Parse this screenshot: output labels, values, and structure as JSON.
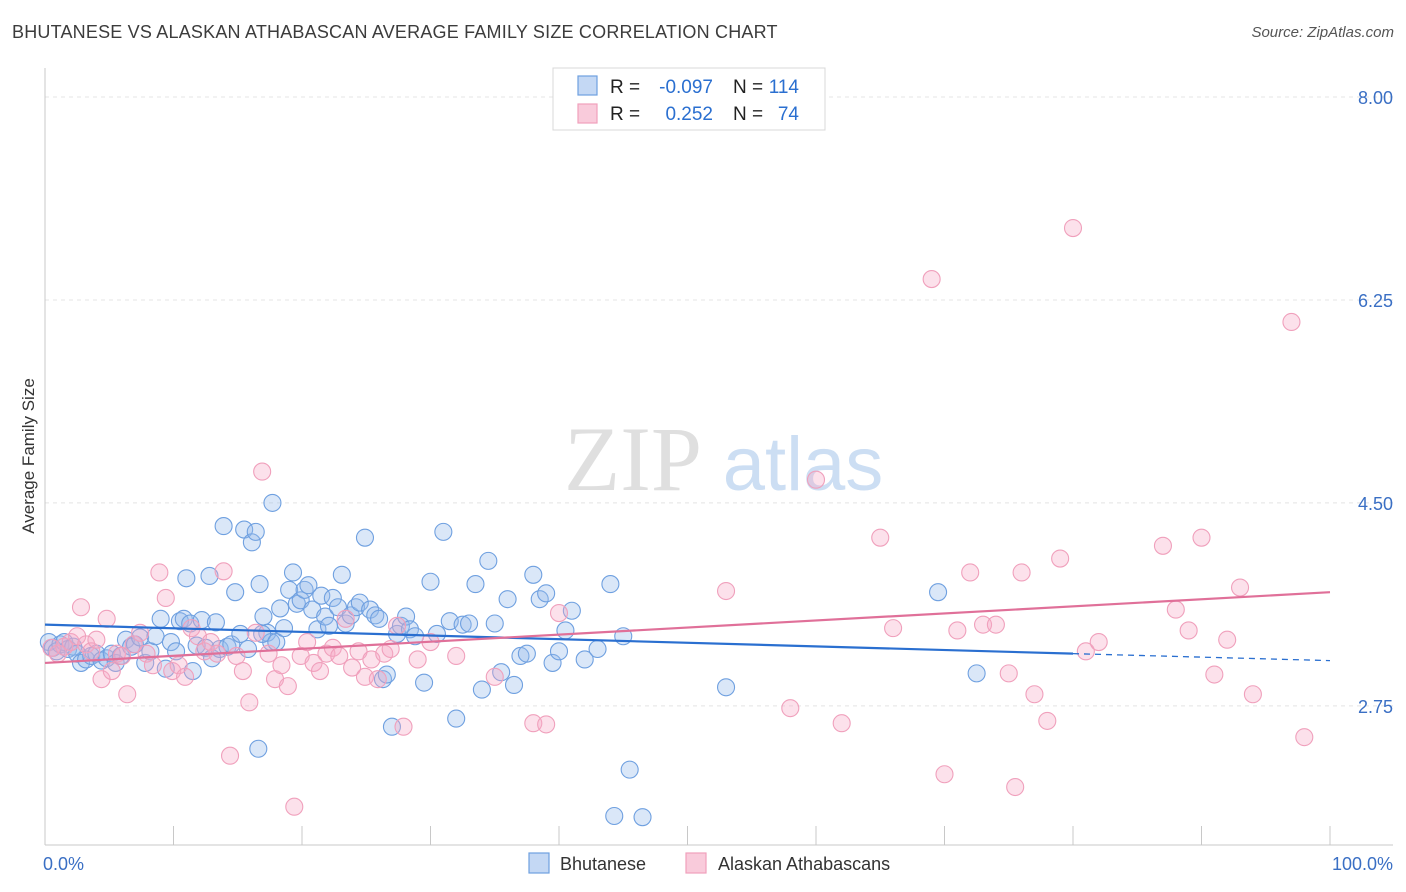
{
  "header": {
    "title": "BHUTANESE VS ALASKAN ATHABASCAN AVERAGE FAMILY SIZE CORRELATION CHART",
    "source": "Source: ZipAtlas.com"
  },
  "watermark": {
    "zip": "ZIP",
    "atlas": "atlas"
  },
  "legend": {
    "rows": [
      {
        "r_label": "R =",
        "r_value": "-0.097",
        "n_label": "N =",
        "n_value": "114"
      },
      {
        "r_label": "R =",
        "r_value": "0.252",
        "n_label": "N =",
        "n_value": "74"
      }
    ]
  },
  "chart_data": {
    "type": "scatter",
    "title": "BHUTANESE VS ALASKAN ATHABASCAN AVERAGE FAMILY SIZE CORRELATION CHART",
    "xlabel": "",
    "ylabel": "Average Family Size",
    "xlim": [
      0,
      100
    ],
    "ylim": [
      1.55,
      8.25
    ],
    "x_tick_labels": [
      "0.0%",
      "100.0%"
    ],
    "y_ticks": [
      2.75,
      4.5,
      6.25,
      8.0
    ],
    "y_tick_labels": [
      "2.75",
      "4.50",
      "6.25",
      "8.00"
    ],
    "grid": true,
    "legend_position": "top-center",
    "colors": {
      "blue": "#6fa0e0",
      "blue_line": "#2a6fd0",
      "pink": "#f0a0bc",
      "pink_line": "#e07099"
    },
    "series": [
      {
        "name": "Bhutanese",
        "color": "#6fa0e0",
        "trend": {
          "x0": 0,
          "y0": 3.45,
          "x1": 80,
          "y1": 3.2,
          "x_dash_end": 100,
          "y_dash_end": 3.14
        },
        "points": [
          [
            0.3,
            3.3
          ],
          [
            0.6,
            3.25
          ],
          [
            0.9,
            3.22
          ],
          [
            1.2,
            3.28
          ],
          [
            1.5,
            3.3
          ],
          [
            1.8,
            3.24
          ],
          [
            2.2,
            3.26
          ],
          [
            2.5,
            3.2
          ],
          [
            2.8,
            3.12
          ],
          [
            3.2,
            3.15
          ],
          [
            3.6,
            3.18
          ],
          [
            4.0,
            3.2
          ],
          [
            4.4,
            3.14
          ],
          [
            4.8,
            3.16
          ],
          [
            5.2,
            3.2
          ],
          [
            5.5,
            3.12
          ],
          [
            5.9,
            3.18
          ],
          [
            6.3,
            3.32
          ],
          [
            6.7,
            3.26
          ],
          [
            7.0,
            3.28
          ],
          [
            7.4,
            3.34
          ],
          [
            7.8,
            3.12
          ],
          [
            8.2,
            3.22
          ],
          [
            8.6,
            3.35
          ],
          [
            9.0,
            3.5
          ],
          [
            9.4,
            3.07
          ],
          [
            9.8,
            3.3
          ],
          [
            10.2,
            3.22
          ],
          [
            10.5,
            3.48
          ],
          [
            10.8,
            3.5
          ],
          [
            11.0,
            3.85
          ],
          [
            11.3,
            3.46
          ],
          [
            11.5,
            3.05
          ],
          [
            11.8,
            3.27
          ],
          [
            12.2,
            3.49
          ],
          [
            12.5,
            3.25
          ],
          [
            12.8,
            3.87
          ],
          [
            13.0,
            3.16
          ],
          [
            13.3,
            3.47
          ],
          [
            13.6,
            3.24
          ],
          [
            13.9,
            4.3
          ],
          [
            14.2,
            3.26
          ],
          [
            14.5,
            3.28
          ],
          [
            14.8,
            3.73
          ],
          [
            15.2,
            3.37
          ],
          [
            15.5,
            4.27
          ],
          [
            15.8,
            3.24
          ],
          [
            16.1,
            4.16
          ],
          [
            16.4,
            4.25
          ],
          [
            16.7,
            3.8
          ],
          [
            17.0,
            3.52
          ],
          [
            17.3,
            3.38
          ],
          [
            17.6,
            3.3
          ],
          [
            16.6,
            2.38
          ],
          [
            16.9,
            3.37
          ],
          [
            17.7,
            4.5
          ],
          [
            18.0,
            3.3
          ],
          [
            18.3,
            3.59
          ],
          [
            18.6,
            3.42
          ],
          [
            19.0,
            3.75
          ],
          [
            19.3,
            3.9
          ],
          [
            19.6,
            3.63
          ],
          [
            19.9,
            3.66
          ],
          [
            20.2,
            3.75
          ],
          [
            20.5,
            3.79
          ],
          [
            20.8,
            3.58
          ],
          [
            21.2,
            3.41
          ],
          [
            21.5,
            3.7
          ],
          [
            21.8,
            3.52
          ],
          [
            22.1,
            3.44
          ],
          [
            22.4,
            3.68
          ],
          [
            22.8,
            3.6
          ],
          [
            23.1,
            3.88
          ],
          [
            23.4,
            3.46
          ],
          [
            23.8,
            3.53
          ],
          [
            24.2,
            3.6
          ],
          [
            24.5,
            3.64
          ],
          [
            24.9,
            4.2
          ],
          [
            25.3,
            3.58
          ],
          [
            25.7,
            3.53
          ],
          [
            26.0,
            3.5
          ],
          [
            26.3,
            2.98
          ],
          [
            26.6,
            3.02
          ],
          [
            27.0,
            2.57
          ],
          [
            27.4,
            3.37
          ],
          [
            27.7,
            3.44
          ],
          [
            28.1,
            3.52
          ],
          [
            28.4,
            3.41
          ],
          [
            28.8,
            3.35
          ],
          [
            29.5,
            2.95
          ],
          [
            30.0,
            3.82
          ],
          [
            30.5,
            3.37
          ],
          [
            31.0,
            4.25
          ],
          [
            31.5,
            3.48
          ],
          [
            32.0,
            2.64
          ],
          [
            32.5,
            3.45
          ],
          [
            33.0,
            3.46
          ],
          [
            33.5,
            3.8
          ],
          [
            34.0,
            2.89
          ],
          [
            34.5,
            4.0
          ],
          [
            35.0,
            3.46
          ],
          [
            35.5,
            3.04
          ],
          [
            36.0,
            3.67
          ],
          [
            36.5,
            2.93
          ],
          [
            37.0,
            3.18
          ],
          [
            37.5,
            3.2
          ],
          [
            38.0,
            3.88
          ],
          [
            38.5,
            3.67
          ],
          [
            39.0,
            3.72
          ],
          [
            39.5,
            3.12
          ],
          [
            40.0,
            3.22
          ],
          [
            40.5,
            3.4
          ],
          [
            41.0,
            3.57
          ],
          [
            42.0,
            3.15
          ],
          [
            43.0,
            3.24
          ],
          [
            44.0,
            3.8
          ],
          [
            45.0,
            3.35
          ],
          [
            44.3,
            1.8
          ],
          [
            45.5,
            2.2
          ],
          [
            46.5,
            1.79
          ],
          [
            53.0,
            2.91
          ],
          [
            69.5,
            3.73
          ],
          [
            72.5,
            3.03
          ]
        ]
      },
      {
        "name": "Alaskan Athabascans",
        "color": "#f0a0bc",
        "trend": {
          "x0": 0,
          "y0": 3.12,
          "x1": 100,
          "y1": 3.73
        },
        "points": [
          [
            0.5,
            3.25
          ],
          [
            1.0,
            3.2
          ],
          [
            1.5,
            3.26
          ],
          [
            2.0,
            3.3
          ],
          [
            2.5,
            3.35
          ],
          [
            2.8,
            3.6
          ],
          [
            3.2,
            3.28
          ],
          [
            3.6,
            3.22
          ],
          [
            4.0,
            3.32
          ],
          [
            4.4,
            2.98
          ],
          [
            4.8,
            3.5
          ],
          [
            5.2,
            3.05
          ],
          [
            5.6,
            3.2
          ],
          [
            6.0,
            3.18
          ],
          [
            6.4,
            2.85
          ],
          [
            6.9,
            3.28
          ],
          [
            7.4,
            3.38
          ],
          [
            7.9,
            3.2
          ],
          [
            8.4,
            3.1
          ],
          [
            8.9,
            3.9
          ],
          [
            9.4,
            3.68
          ],
          [
            9.9,
            3.05
          ],
          [
            10.4,
            3.1
          ],
          [
            10.9,
            3.0
          ],
          [
            11.4,
            3.42
          ],
          [
            11.9,
            3.35
          ],
          [
            12.4,
            3.22
          ],
          [
            12.9,
            3.3
          ],
          [
            13.4,
            3.2
          ],
          [
            13.9,
            3.91
          ],
          [
            14.4,
            2.32
          ],
          [
            14.9,
            3.18
          ],
          [
            15.4,
            3.05
          ],
          [
            15.9,
            2.78
          ],
          [
            16.4,
            3.38
          ],
          [
            16.9,
            4.77
          ],
          [
            17.4,
            3.2
          ],
          [
            17.9,
            2.98
          ],
          [
            18.4,
            3.1
          ],
          [
            18.9,
            2.92
          ],
          [
            19.4,
            1.88
          ],
          [
            19.9,
            3.18
          ],
          [
            20.4,
            3.3
          ],
          [
            20.9,
            3.12
          ],
          [
            21.4,
            3.05
          ],
          [
            21.9,
            3.2
          ],
          [
            22.4,
            3.25
          ],
          [
            22.9,
            3.18
          ],
          [
            23.4,
            3.5
          ],
          [
            23.9,
            3.08
          ],
          [
            24.4,
            3.22
          ],
          [
            24.9,
            3.0
          ],
          [
            25.4,
            3.15
          ],
          [
            25.9,
            2.98
          ],
          [
            26.4,
            3.2
          ],
          [
            26.9,
            3.24
          ],
          [
            27.4,
            3.44
          ],
          [
            27.9,
            2.57
          ],
          [
            29.0,
            3.15
          ],
          [
            30.0,
            3.3
          ],
          [
            32.0,
            3.18
          ],
          [
            35.0,
            3.0
          ],
          [
            38.0,
            2.6
          ],
          [
            39.0,
            2.59
          ],
          [
            40.0,
            3.55
          ],
          [
            53.0,
            3.74
          ],
          [
            58.0,
            2.73
          ],
          [
            60.0,
            4.7
          ],
          [
            62.0,
            2.6
          ],
          [
            65.0,
            4.2
          ],
          [
            66.0,
            3.42
          ],
          [
            69.0,
            6.43
          ],
          [
            70.0,
            2.16
          ],
          [
            71.0,
            3.4
          ],
          [
            72.0,
            3.9
          ],
          [
            73.0,
            3.45
          ],
          [
            74.0,
            3.45
          ],
          [
            75.0,
            3.03
          ],
          [
            75.5,
            2.05
          ],
          [
            76.0,
            3.9
          ],
          [
            77.0,
            2.85
          ],
          [
            78.0,
            2.62
          ],
          [
            79.0,
            4.02
          ],
          [
            80.0,
            6.87
          ],
          [
            81.0,
            3.22
          ],
          [
            82.0,
            3.3
          ],
          [
            87.0,
            4.13
          ],
          [
            88.0,
            3.58
          ],
          [
            89.0,
            3.4
          ],
          [
            90.0,
            4.2
          ],
          [
            91.0,
            3.02
          ],
          [
            92.0,
            3.32
          ],
          [
            93.0,
            3.77
          ],
          [
            94.0,
            2.85
          ],
          [
            97.0,
            6.06
          ],
          [
            98.0,
            2.48
          ]
        ]
      }
    ]
  },
  "bottom_legend": {
    "items": [
      {
        "label": "Bhutanese",
        "color": "#6fa0e0"
      },
      {
        "label": "Alaskan Athabascans",
        "color": "#f0a0bc"
      }
    ]
  }
}
